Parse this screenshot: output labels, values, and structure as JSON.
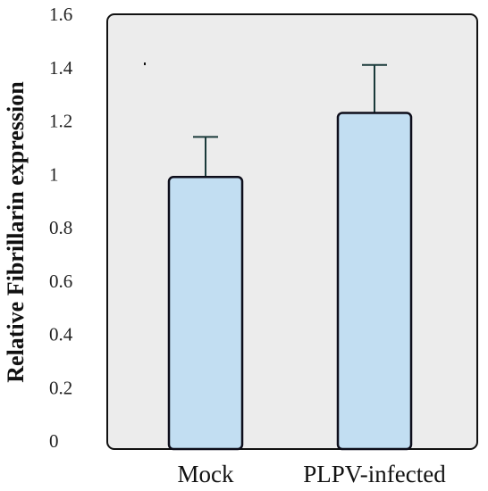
{
  "chart_data": {
    "type": "bar",
    "title": "",
    "xlabel": "",
    "ylabel": "Relative Fibrillarin expression",
    "categories": [
      "Mock",
      "PLPV-infected"
    ],
    "values": [
      0.99,
      1.23
    ],
    "error_bars": [
      0.15,
      0.18
    ],
    "ylim": [
      0,
      1.6
    ],
    "yticks": [
      "0",
      "0.2",
      "0.4",
      "0.6",
      "0.8",
      "1",
      "1.2",
      "1.4",
      "1.6"
    ],
    "grid": false,
    "colors": {
      "bar_fill": "#c2def2",
      "bar_stroke": "#0d0d1a",
      "plot_background": "#ececec",
      "error_bar": "#1a3a3a"
    }
  }
}
